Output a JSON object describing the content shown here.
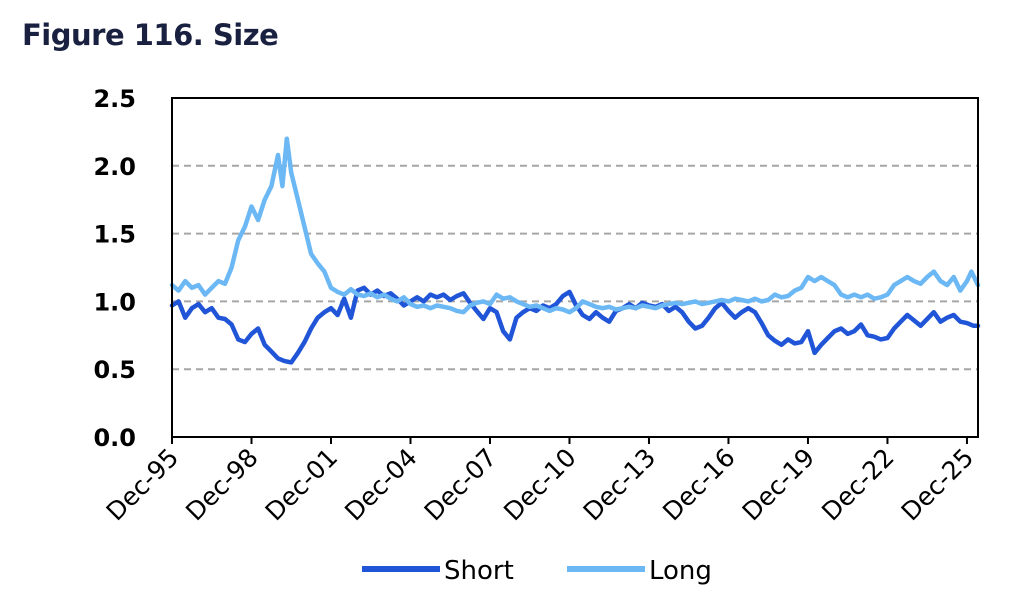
{
  "chart_data": {
    "type": "line",
    "title": "Figure 116. Size",
    "xlabel": "",
    "ylabel": "",
    "ylim": [
      0,
      2.5
    ],
    "y_ticks": [
      "0.0",
      "0.5",
      "1.0",
      "1.5",
      "2.0",
      "2.5"
    ],
    "x_ticks": [
      "Dec-95",
      "Dec-98",
      "Dec-01",
      "Dec-04",
      "Dec-07",
      "Dec-10",
      "Dec-13",
      "Dec-16",
      "Dec-19",
      "Dec-22",
      "Dec-25"
    ],
    "grid": "horizontal dashed",
    "legend": "bottom",
    "colors": {
      "Short": "#2155d8",
      "Long": "#6cb8f5"
    },
    "series": [
      {
        "name": "Short",
        "points": [
          [
            "1995-12",
            0.97
          ],
          [
            "1996-03",
            1.0
          ],
          [
            "1996-06",
            0.88
          ],
          [
            "1996-09",
            0.95
          ],
          [
            "1996-12",
            0.98
          ],
          [
            "1997-03",
            0.92
          ],
          [
            "1997-06",
            0.95
          ],
          [
            "1997-09",
            0.88
          ],
          [
            "1997-12",
            0.87
          ],
          [
            "1998-03",
            0.83
          ],
          [
            "1998-06",
            0.72
          ],
          [
            "1998-09",
            0.7
          ],
          [
            "1998-12",
            0.76
          ],
          [
            "1999-03",
            0.8
          ],
          [
            "1999-06",
            0.68
          ],
          [
            "1999-09",
            0.63
          ],
          [
            "1999-12",
            0.58
          ],
          [
            "2000-03",
            0.56
          ],
          [
            "2000-06",
            0.55
          ],
          [
            "2000-09",
            0.62
          ],
          [
            "2000-12",
            0.7
          ],
          [
            "2001-03",
            0.8
          ],
          [
            "2001-06",
            0.88
          ],
          [
            "2001-09",
            0.92
          ],
          [
            "2001-12",
            0.95
          ],
          [
            "2002-03",
            0.9
          ],
          [
            "2002-06",
            1.02
          ],
          [
            "2002-09",
            0.88
          ],
          [
            "2002-12",
            1.08
          ],
          [
            "2003-03",
            1.1
          ],
          [
            "2003-06",
            1.05
          ],
          [
            "2003-09",
            1.08
          ],
          [
            "2003-12",
            1.04
          ],
          [
            "2004-03",
            1.06
          ],
          [
            "2004-06",
            1.02
          ],
          [
            "2004-09",
            0.97
          ],
          [
            "2004-12",
            1.0
          ],
          [
            "2005-03",
            1.03
          ],
          [
            "2005-06",
            1.0
          ],
          [
            "2005-09",
            1.05
          ],
          [
            "2005-12",
            1.03
          ],
          [
            "2006-03",
            1.05
          ],
          [
            "2006-06",
            1.01
          ],
          [
            "2006-09",
            1.04
          ],
          [
            "2006-12",
            1.06
          ],
          [
            "2007-03",
            0.99
          ],
          [
            "2007-06",
            0.93
          ],
          [
            "2007-09",
            0.87
          ],
          [
            "2007-12",
            0.95
          ],
          [
            "2008-03",
            0.92
          ],
          [
            "2008-06",
            0.78
          ],
          [
            "2008-09",
            0.72
          ],
          [
            "2008-12",
            0.88
          ],
          [
            "2009-03",
            0.92
          ],
          [
            "2009-06",
            0.95
          ],
          [
            "2009-09",
            0.93
          ],
          [
            "2009-12",
            0.97
          ],
          [
            "2010-03",
            0.95
          ],
          [
            "2010-06",
            0.98
          ],
          [
            "2010-09",
            1.04
          ],
          [
            "2010-12",
            1.07
          ],
          [
            "2011-03",
            0.97
          ],
          [
            "2011-06",
            0.9
          ],
          [
            "2011-09",
            0.87
          ],
          [
            "2011-12",
            0.92
          ],
          [
            "2012-03",
            0.88
          ],
          [
            "2012-06",
            0.85
          ],
          [
            "2012-09",
            0.93
          ],
          [
            "2012-12",
            0.95
          ],
          [
            "2013-03",
            0.98
          ],
          [
            "2013-06",
            0.95
          ],
          [
            "2013-09",
            0.99
          ],
          [
            "2013-12",
            0.97
          ],
          [
            "2014-03",
            0.96
          ],
          [
            "2014-06",
            0.98
          ],
          [
            "2014-09",
            0.93
          ],
          [
            "2014-12",
            0.96
          ],
          [
            "2015-03",
            0.92
          ],
          [
            "2015-06",
            0.85
          ],
          [
            "2015-09",
            0.8
          ],
          [
            "2015-12",
            0.82
          ],
          [
            "2016-03",
            0.88
          ],
          [
            "2016-06",
            0.95
          ],
          [
            "2016-09",
            0.99
          ],
          [
            "2016-12",
            0.93
          ],
          [
            "2017-03",
            0.88
          ],
          [
            "2017-06",
            0.92
          ],
          [
            "2017-09",
            0.95
          ],
          [
            "2017-12",
            0.92
          ],
          [
            "2018-03",
            0.84
          ],
          [
            "2018-06",
            0.75
          ],
          [
            "2018-09",
            0.71
          ],
          [
            "2018-12",
            0.68
          ],
          [
            "2019-03",
            0.72
          ],
          [
            "2019-06",
            0.69
          ],
          [
            "2019-09",
            0.7
          ],
          [
            "2019-12",
            0.78
          ],
          [
            "2020-03",
            0.62
          ],
          [
            "2020-06",
            0.68
          ],
          [
            "2020-09",
            0.73
          ],
          [
            "2020-12",
            0.78
          ],
          [
            "2021-03",
            0.8
          ],
          [
            "2021-06",
            0.76
          ],
          [
            "2021-09",
            0.78
          ],
          [
            "2021-12",
            0.83
          ],
          [
            "2022-03",
            0.75
          ],
          [
            "2022-06",
            0.74
          ],
          [
            "2022-09",
            0.72
          ],
          [
            "2022-12",
            0.73
          ],
          [
            "2023-03",
            0.8
          ],
          [
            "2023-06",
            0.85
          ],
          [
            "2023-09",
            0.9
          ],
          [
            "2023-12",
            0.86
          ],
          [
            "2024-03",
            0.82
          ],
          [
            "2024-06",
            0.87
          ],
          [
            "2024-09",
            0.92
          ],
          [
            "2024-12",
            0.85
          ],
          [
            "2025-03",
            0.88
          ],
          [
            "2025-06",
            0.9
          ],
          [
            "2025-09",
            0.85
          ],
          [
            "2025-12",
            0.84
          ],
          [
            "2026-03",
            0.82
          ],
          [
            "2026-05",
            0.82
          ]
        ]
      },
      {
        "name": "Long",
        "points": [
          [
            "1995-12",
            1.12
          ],
          [
            "1996-03",
            1.08
          ],
          [
            "1996-06",
            1.15
          ],
          [
            "1996-09",
            1.1
          ],
          [
            "1996-12",
            1.12
          ],
          [
            "1997-03",
            1.05
          ],
          [
            "1997-06",
            1.1
          ],
          [
            "1997-09",
            1.15
          ],
          [
            "1997-12",
            1.13
          ],
          [
            "1998-03",
            1.25
          ],
          [
            "1998-06",
            1.45
          ],
          [
            "1998-09",
            1.55
          ],
          [
            "1998-12",
            1.7
          ],
          [
            "1999-03",
            1.6
          ],
          [
            "1999-06",
            1.75
          ],
          [
            "1999-09",
            1.85
          ],
          [
            "1999-12",
            2.08
          ],
          [
            "2000-02",
            1.85
          ],
          [
            "2000-04",
            2.2
          ],
          [
            "2000-06",
            1.95
          ],
          [
            "2000-09",
            1.75
          ],
          [
            "2000-12",
            1.55
          ],
          [
            "2001-03",
            1.35
          ],
          [
            "2001-06",
            1.28
          ],
          [
            "2001-09",
            1.22
          ],
          [
            "2001-12",
            1.1
          ],
          [
            "2002-03",
            1.07
          ],
          [
            "2002-06",
            1.05
          ],
          [
            "2002-09",
            1.09
          ],
          [
            "2002-12",
            1.05
          ],
          [
            "2003-03",
            1.04
          ],
          [
            "2003-06",
            1.06
          ],
          [
            "2003-09",
            1.03
          ],
          [
            "2003-12",
            1.05
          ],
          [
            "2004-03",
            1.02
          ],
          [
            "2004-06",
            1.0
          ],
          [
            "2004-09",
            1.03
          ],
          [
            "2004-12",
            0.98
          ],
          [
            "2005-03",
            0.96
          ],
          [
            "2005-06",
            0.97
          ],
          [
            "2005-09",
            0.95
          ],
          [
            "2005-12",
            0.97
          ],
          [
            "2006-03",
            0.96
          ],
          [
            "2006-06",
            0.95
          ],
          [
            "2006-09",
            0.93
          ],
          [
            "2006-12",
            0.92
          ],
          [
            "2007-03",
            0.97
          ],
          [
            "2007-06",
            0.99
          ],
          [
            "2007-09",
            1.0
          ],
          [
            "2007-12",
            0.98
          ],
          [
            "2008-03",
            1.05
          ],
          [
            "2008-06",
            1.02
          ],
          [
            "2008-09",
            1.03
          ],
          [
            "2008-12",
            1.0
          ],
          [
            "2009-03",
            0.98
          ],
          [
            "2009-06",
            0.96
          ],
          [
            "2009-09",
            0.97
          ],
          [
            "2009-12",
            0.95
          ],
          [
            "2010-03",
            0.93
          ],
          [
            "2010-06",
            0.95
          ],
          [
            "2010-09",
            0.94
          ],
          [
            "2010-12",
            0.92
          ],
          [
            "2011-03",
            0.95
          ],
          [
            "2011-06",
            1.0
          ],
          [
            "2011-09",
            0.98
          ],
          [
            "2011-12",
            0.96
          ],
          [
            "2012-03",
            0.95
          ],
          [
            "2012-06",
            0.96
          ],
          [
            "2012-09",
            0.94
          ],
          [
            "2012-12",
            0.95
          ],
          [
            "2013-03",
            0.96
          ],
          [
            "2013-06",
            0.95
          ],
          [
            "2013-09",
            0.97
          ],
          [
            "2013-12",
            0.96
          ],
          [
            "2014-03",
            0.95
          ],
          [
            "2014-06",
            0.97
          ],
          [
            "2014-09",
            0.98
          ],
          [
            "2014-12",
            0.99
          ],
          [
            "2015-03",
            0.98
          ],
          [
            "2015-06",
            0.99
          ],
          [
            "2015-09",
            1.0
          ],
          [
            "2015-12",
            0.98
          ],
          [
            "2016-03",
            0.99
          ],
          [
            "2016-06",
            1.0
          ],
          [
            "2016-09",
            1.01
          ],
          [
            "2016-12",
            1.0
          ],
          [
            "2017-03",
            1.02
          ],
          [
            "2017-06",
            1.01
          ],
          [
            "2017-09",
            1.0
          ],
          [
            "2017-12",
            1.02
          ],
          [
            "2018-03",
            1.0
          ],
          [
            "2018-06",
            1.01
          ],
          [
            "2018-09",
            1.05
          ],
          [
            "2018-12",
            1.03
          ],
          [
            "2019-03",
            1.04
          ],
          [
            "2019-06",
            1.08
          ],
          [
            "2019-09",
            1.1
          ],
          [
            "2019-12",
            1.18
          ],
          [
            "2020-03",
            1.15
          ],
          [
            "2020-06",
            1.18
          ],
          [
            "2020-09",
            1.15
          ],
          [
            "2020-12",
            1.12
          ],
          [
            "2021-03",
            1.05
          ],
          [
            "2021-06",
            1.03
          ],
          [
            "2021-09",
            1.05
          ],
          [
            "2021-12",
            1.03
          ],
          [
            "2022-03",
            1.05
          ],
          [
            "2022-06",
            1.02
          ],
          [
            "2022-09",
            1.03
          ],
          [
            "2022-12",
            1.05
          ],
          [
            "2023-03",
            1.12
          ],
          [
            "2023-06",
            1.15
          ],
          [
            "2023-09",
            1.18
          ],
          [
            "2023-12",
            1.15
          ],
          [
            "2024-03",
            1.13
          ],
          [
            "2024-06",
            1.18
          ],
          [
            "2024-09",
            1.22
          ],
          [
            "2024-12",
            1.15
          ],
          [
            "2025-03",
            1.12
          ],
          [
            "2025-06",
            1.18
          ],
          [
            "2025-09",
            1.08
          ],
          [
            "2025-12",
            1.15
          ],
          [
            "2026-02",
            1.22
          ],
          [
            "2026-05",
            1.12
          ]
        ]
      }
    ]
  }
}
